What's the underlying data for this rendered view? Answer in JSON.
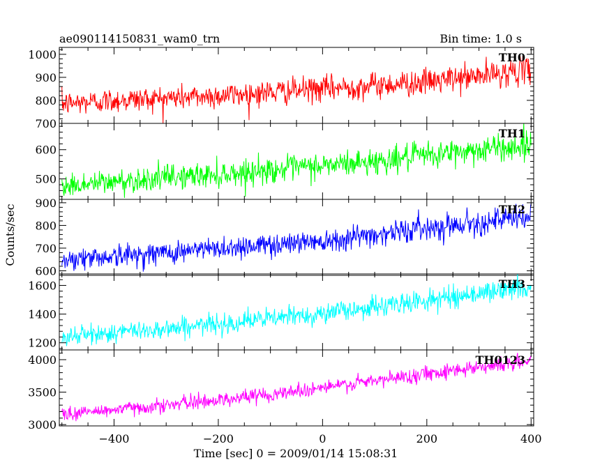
{
  "header": {
    "title": "ae090114150831_wam0_trn",
    "bin_time": "Bin time: 1.0 s"
  },
  "chart_data": {
    "type": "line",
    "title": "ae090114150831_wam0_trn",
    "xlabel": "Time [sec] 0 = 2009/01/14 15:08:31",
    "ylabel": "Counts/sec",
    "xlim": [
      -505,
      405
    ],
    "x_ticks": [
      -400,
      -200,
      0,
      200,
      400
    ],
    "x_tick_labels": [
      "−400",
      "−200",
      "0",
      "200",
      "400"
    ],
    "bin_time_s": 1.0,
    "x_range": [
      -500,
      400
    ],
    "panels": [
      {
        "name": "TH0",
        "color": "#ff0000",
        "ylim": [
          700,
          1030
        ],
        "y_ticks": [
          700,
          800,
          900,
          1000
        ],
        "y_tick_labels": [
          "700",
          "800",
          "900",
          "1000"
        ],
        "x": [
          -500,
          -400,
          -300,
          -200,
          -100,
          0,
          100,
          200,
          300,
          400
        ],
        "values": [
          785,
          800,
          810,
          820,
          835,
          850,
          865,
          880,
          905,
          935
        ]
      },
      {
        "name": "TH1",
        "color": "#00ff00",
        "ylim": [
          430,
          690
        ],
        "y_ticks": [
          500,
          600
        ],
        "y_tick_labels": [
          "500",
          "600"
        ],
        "x": [
          -500,
          -400,
          -300,
          -200,
          -100,
          0,
          100,
          200,
          300,
          400
        ],
        "values": [
          475,
          490,
          505,
          515,
          530,
          545,
          560,
          580,
          600,
          615
        ]
      },
      {
        "name": "TH2",
        "color": "#0000ff",
        "ylim": [
          580,
          915
        ],
        "y_ticks": [
          600,
          700,
          800,
          900
        ],
        "y_tick_labels": [
          "600",
          "700",
          "800",
          "900"
        ],
        "x": [
          -500,
          -400,
          -300,
          -200,
          -100,
          0,
          100,
          200,
          300,
          400
        ],
        "values": [
          650,
          665,
          680,
          700,
          715,
          735,
          760,
          790,
          815,
          835
        ]
      },
      {
        "name": "TH3",
        "color": "#00ffff",
        "ylim": [
          1150,
          1680
        ],
        "y_ticks": [
          1200,
          1400,
          1600
        ],
        "y_tick_labels": [
          "1200",
          "1400",
          "1600"
        ],
        "x": [
          -500,
          -400,
          -300,
          -200,
          -100,
          0,
          100,
          200,
          300,
          400
        ],
        "values": [
          1240,
          1270,
          1300,
          1330,
          1370,
          1405,
          1450,
          1495,
          1545,
          1590
        ]
      },
      {
        "name": "TH0123",
        "color": "#ff00ff",
        "ylim": [
          2980,
          4150
        ],
        "y_ticks": [
          3000,
          3500,
          4000
        ],
        "y_tick_labels": [
          "3000",
          "3500",
          "4000"
        ],
        "x": [
          -500,
          -400,
          -300,
          -200,
          -100,
          0,
          100,
          200,
          300,
          400
        ],
        "values": [
          3160,
          3230,
          3300,
          3380,
          3470,
          3570,
          3670,
          3790,
          3890,
          3970
        ]
      }
    ]
  }
}
